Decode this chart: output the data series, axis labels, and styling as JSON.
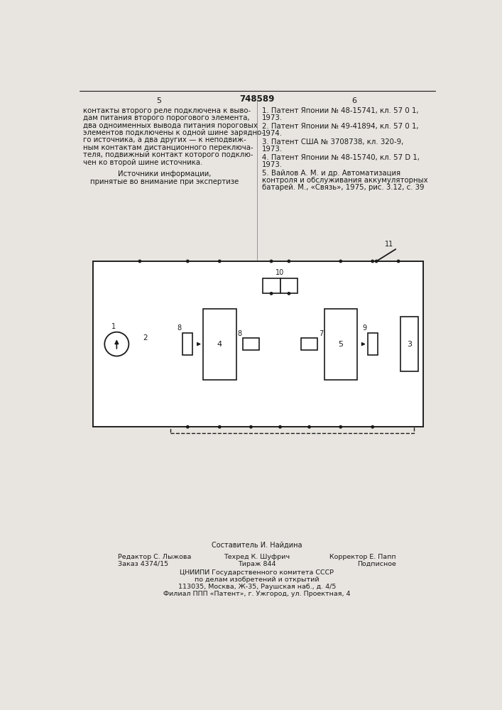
{
  "page_color": "#e8e5e0",
  "title_number": "748589",
  "col_left_number": "5",
  "col_right_number": "6",
  "left_lines": [
    "контакты второго реле подключена к выво-",
    "дам питания второго порогового элемента,",
    "два одноименных вывода питания пороговых",
    "элементов подключены к одной шине зарядно-",
    "го источника, а два других — к неподвиж-",
    "ным контактам дистанционного переключа-",
    "теля, подвижный контакт которого подклю-",
    "чен ко второй шине источника."
  ],
  "sources_line1": "Источники информации,",
  "sources_line2": "принятые во внимание при экспертизе",
  "refs": [
    [
      "1. Патент Японии № 48-15741, кл. 57 0 1,",
      "1973."
    ],
    [
      "2. Патент Японии № 49-41894, кл. 57 0 1,",
      "1974."
    ],
    [
      "3. Патент США № 3708738, кл. 320-9,",
      "1973."
    ],
    [
      "4. Патент Японии № 48-15740, кл. 57 D 1,",
      "1973."
    ],
    [
      "5. Вайлов А. М. и др. Автоматизация",
      "контроля и обслуживания аккумуляторных",
      "батарей. М., «Связь», 1975, рис. 3.12, с. 39"
    ]
  ],
  "footer_comp": "Составитель И. Найдина",
  "footer_ed": "Редактор С. Лыжова",
  "footer_tech": "Техред К. Шуфрич",
  "footer_corr": "Корректор Е. Папп",
  "footer_order": "Заказ 4374/15",
  "footer_circ": "Тираж 844",
  "footer_sign": "Подписное",
  "footer_org1": "ЦНИИПИ Государственного комитета СССР",
  "footer_org2": "по делам изобретений и открытий",
  "footer_org3": "113035, Москва, Ж-35, Раушская наб., д. 4/5",
  "footer_org4": "Филиал ППП «Патент», г. Ужгород, ул. Проектная, 4"
}
